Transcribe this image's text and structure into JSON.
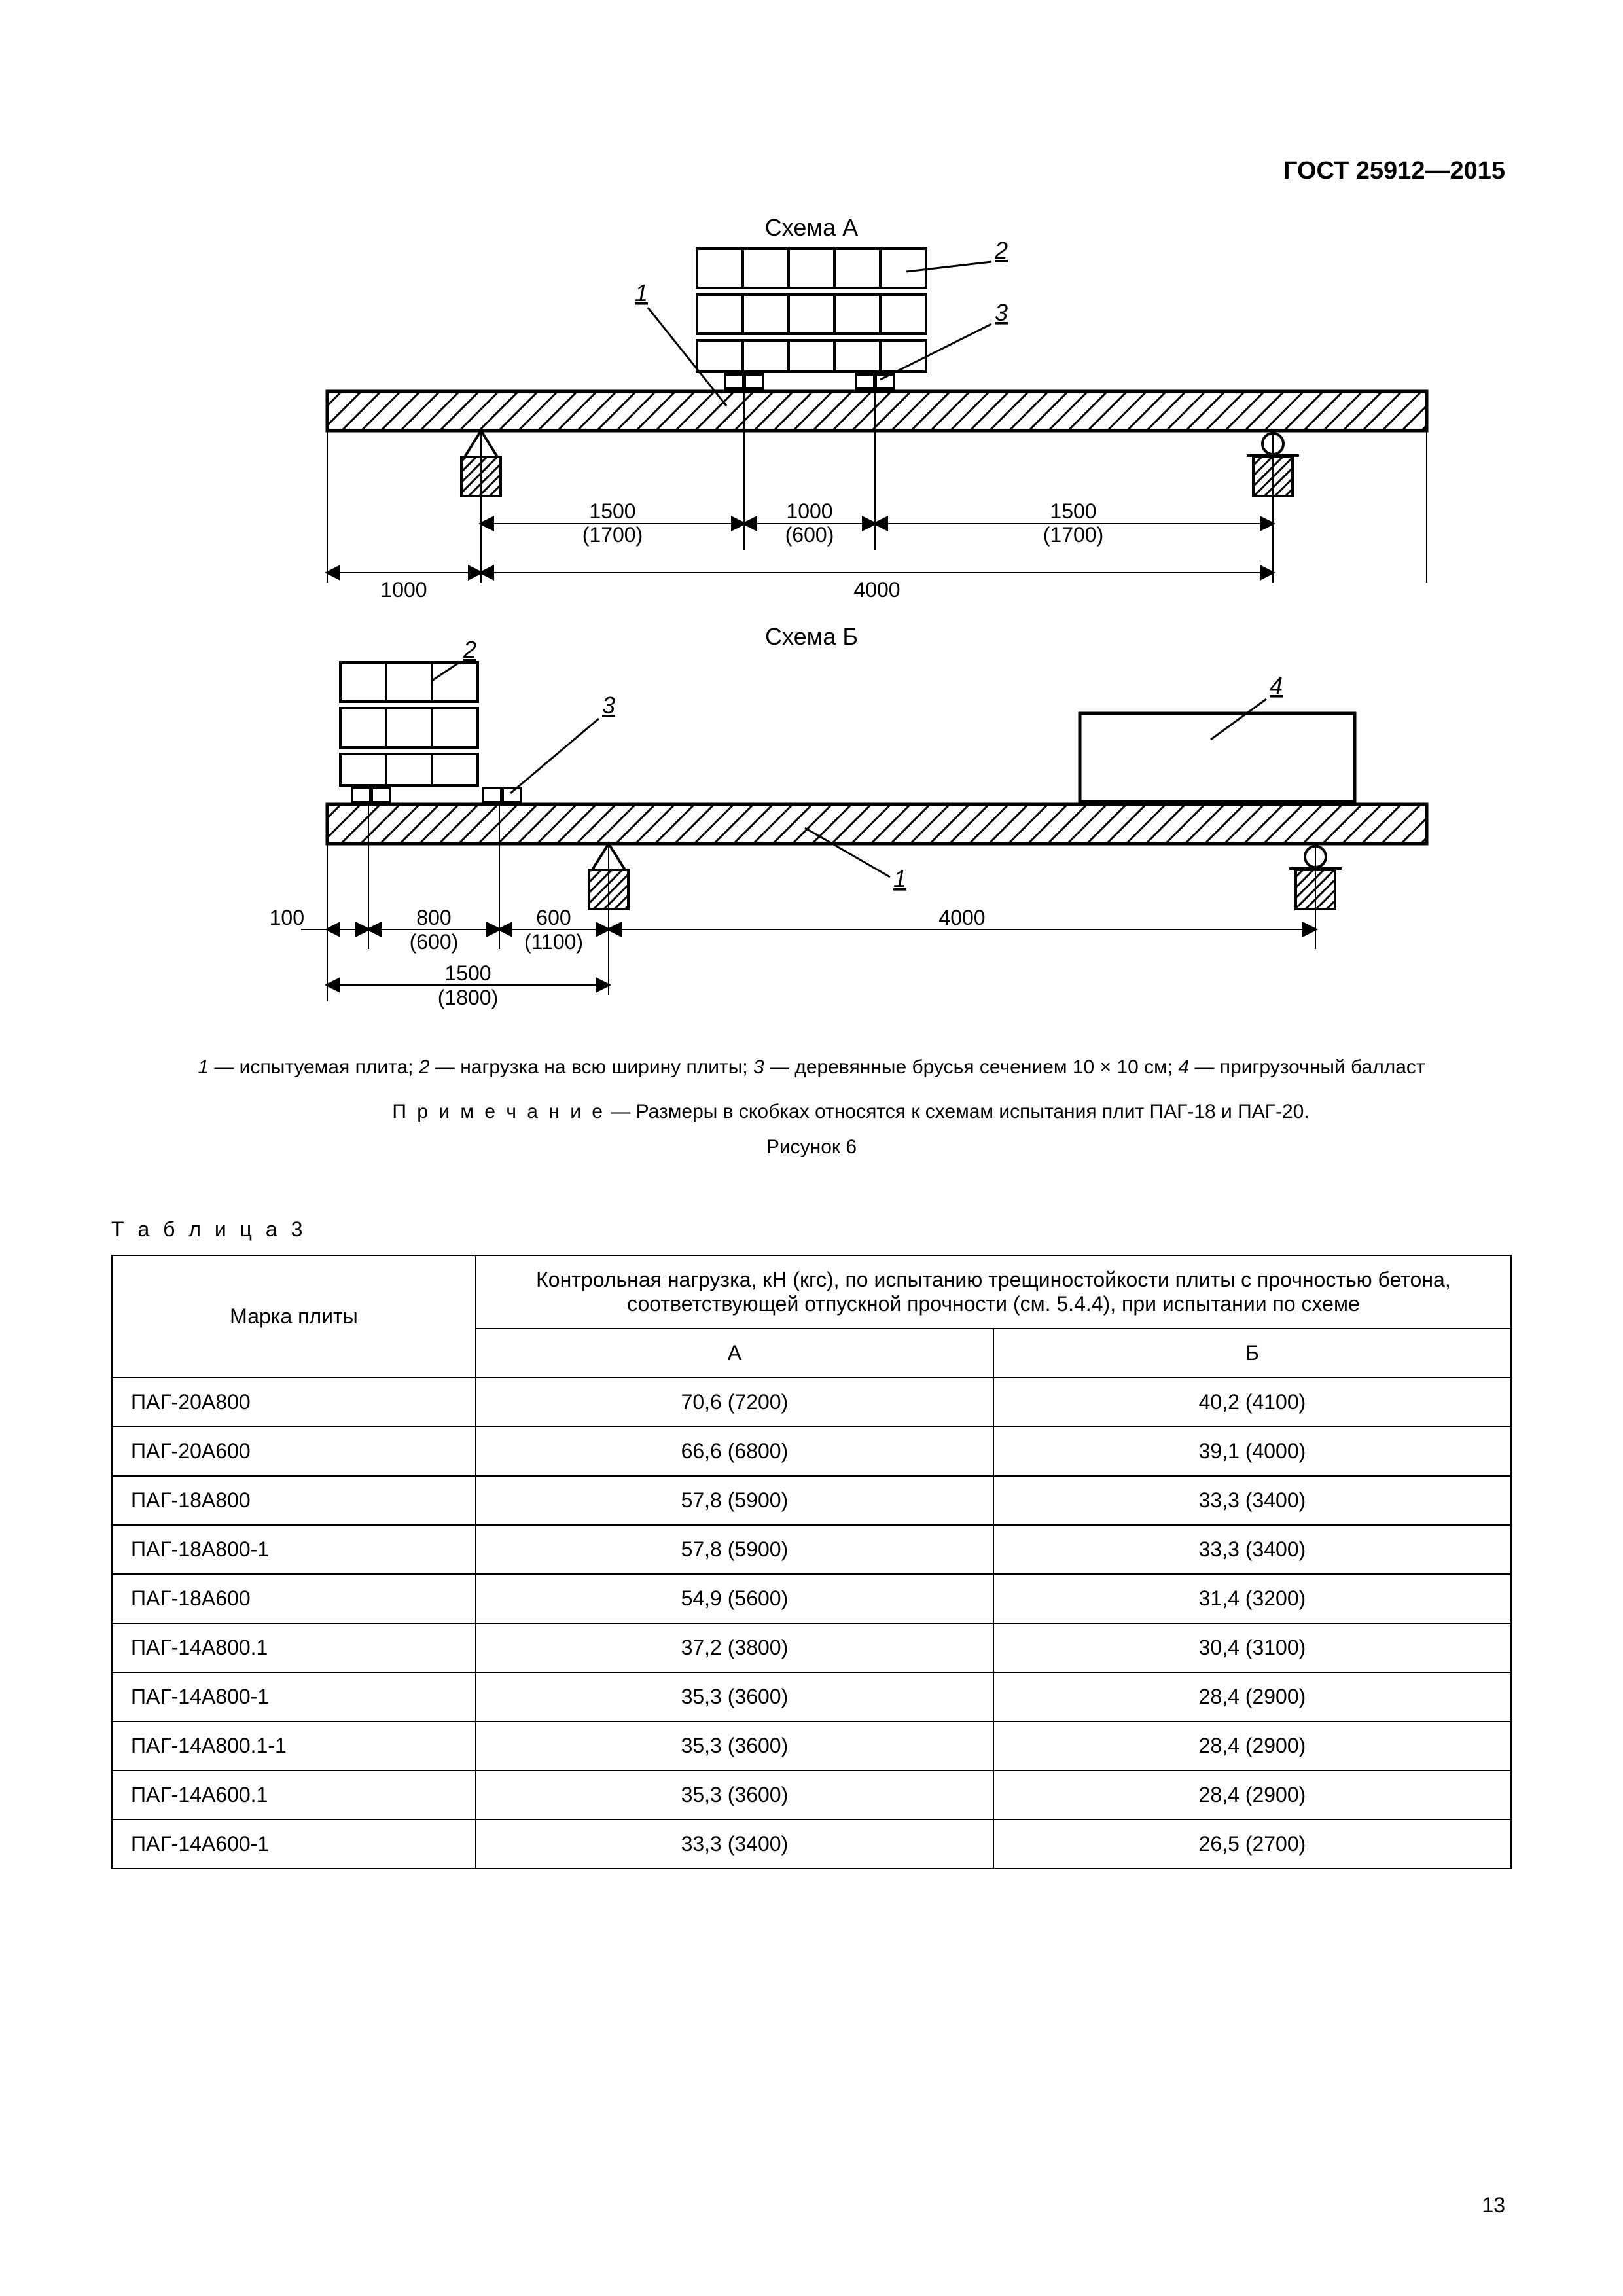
{
  "header": {
    "doc_id": "ГОСТ 25912—2015"
  },
  "page_number": "13",
  "diagram_a": {
    "title": "Схема А",
    "labels": {
      "l1": "1",
      "l2": "2",
      "l3": "3"
    },
    "dims": {
      "left_margin": "1000",
      "d1": "1500",
      "d1_paren": "(1700)",
      "d2": "1000",
      "d2_paren": "(600)",
      "d3": "1500",
      "d3_paren": "(1700)",
      "total": "4000"
    }
  },
  "diagram_b": {
    "title": "Схема Б",
    "labels": {
      "l1": "1",
      "l2": "2",
      "l3": "3",
      "l4": "4"
    },
    "dims": {
      "d100": "100",
      "d800": "800",
      "d800_paren": "(600)",
      "d600": "600",
      "d600_paren": "(1100)",
      "d1500": "1500",
      "d1500_paren": "(1800)",
      "d4000": "4000"
    }
  },
  "legend": {
    "text": "1 — испытуемая плита; 2 — нагрузка на всю ширину плиты; 3 — деревянные брусья сечением 10 × 10 см; 4 — пригрузочный балласт",
    "i1": "1",
    "i2": "2",
    "i3": "3",
    "i4": "4"
  },
  "note": {
    "prefix": "П р и м е ч а н и е",
    "text": " — Размеры в скобках относятся к схемам испытания плит ПАГ-18 и ПАГ-20."
  },
  "figure_caption": "Рисунок 6",
  "table": {
    "title": "Т а б л и ц а  3",
    "col_plate": "Марка плиты",
    "col_main": "Контрольная нагрузка, кН (кгс), по испытанию трещиностойкости плиты с прочностью бетона, соответствующей отпускной прочности (см. 5.4.4), при испытании по схеме",
    "col_a": "А",
    "col_b": "Б",
    "rows": [
      {
        "name": "ПАГ-20A800",
        "a": "70,6 (7200)",
        "b": "40,2 (4100)"
      },
      {
        "name": "ПАГ-20A600",
        "a": "66,6 (6800)",
        "b": "39,1 (4000)"
      },
      {
        "name": "ПАГ-18A800",
        "a": "57,8 (5900)",
        "b": "33,3 (3400)"
      },
      {
        "name": "ПАГ-18A800-1",
        "a": "57,8 (5900)",
        "b": "33,3 (3400)"
      },
      {
        "name": "ПАГ-18A600",
        "a": "54,9 (5600)",
        "b": "31,4 (3200)"
      },
      {
        "name": "ПАГ-14A800.1",
        "a": "37,2 (3800)",
        "b": "30,4 (3100)"
      },
      {
        "name": "ПАГ-14A800-1",
        "a": "35,3 (3600)",
        "b": "28,4 (2900)"
      },
      {
        "name": "ПАГ-14A800.1-1",
        "a": "35,3 (3600)",
        "b": "28,4 (2900)"
      },
      {
        "name": "ПАГ-14A600.1",
        "a": "35,3 (3600)",
        "b": "28,4 (2900)"
      },
      {
        "name": "ПАГ-14A600-1",
        "a": "33,3 (3400)",
        "b": "26,5 (2700)"
      }
    ]
  },
  "style": {
    "stroke": "#000000",
    "stroke_w": 3,
    "stroke_w_thick": 5,
    "hatch_color": "#000000"
  }
}
